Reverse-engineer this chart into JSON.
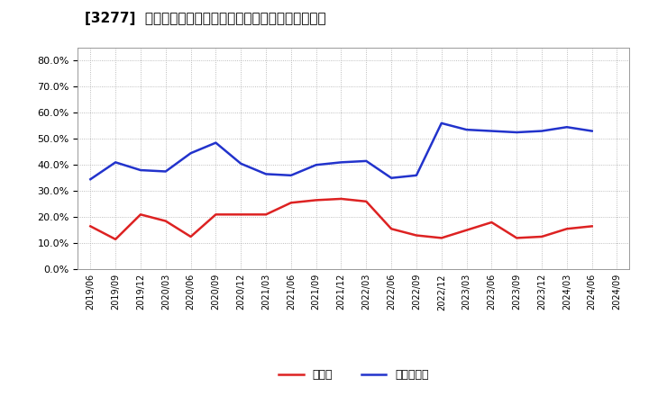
{
  "title": "[3277]  現預金、有利子負債の総資産に対する比率の推移",
  "dates": [
    "2019/06",
    "2019/09",
    "2019/12",
    "2020/03",
    "2020/06",
    "2020/09",
    "2020/12",
    "2021/03",
    "2021/06",
    "2021/09",
    "2021/12",
    "2022/03",
    "2022/06",
    "2022/09",
    "2022/12",
    "2023/03",
    "2023/06",
    "2023/09",
    "2023/12",
    "2024/03",
    "2024/06",
    "2024/09"
  ],
  "cash": [
    0.165,
    0.115,
    0.21,
    0.185,
    0.125,
    0.21,
    0.21,
    0.21,
    0.255,
    0.265,
    0.27,
    0.26,
    0.155,
    0.13,
    0.12,
    0.15,
    0.18,
    0.12,
    0.125,
    0.155,
    0.165,
    null
  ],
  "debt": [
    0.345,
    0.41,
    0.38,
    0.375,
    0.445,
    0.485,
    0.405,
    0.365,
    0.36,
    0.4,
    0.41,
    0.415,
    0.35,
    0.36,
    0.56,
    0.535,
    0.53,
    0.525,
    0.53,
    0.545,
    0.53,
    null
  ],
  "cash_color": "#dd2222",
  "debt_color": "#2233cc",
  "bg_color": "#ffffff",
  "grid_color": "#aaaaaa",
  "ylim": [
    0.0,
    0.85
  ],
  "yticks": [
    0.0,
    0.1,
    0.2,
    0.3,
    0.4,
    0.5,
    0.6,
    0.7,
    0.8
  ],
  "legend_cash": "現預金",
  "legend_debt": "有利子負債",
  "line_width": 1.8
}
